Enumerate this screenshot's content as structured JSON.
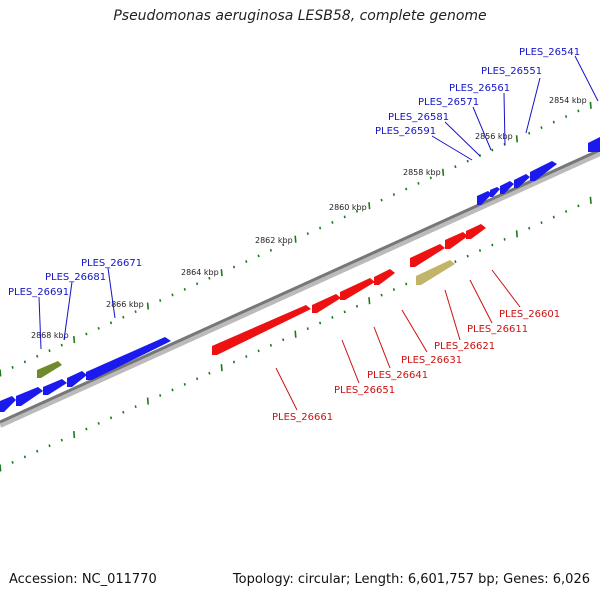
{
  "title": "Pseudomonas aeruginosa LESB58, complete genome",
  "footer": {
    "accession": "Accession: NC_011770",
    "stats": "Topology: circular; Length: 6,601,757 bp; Genes: 6,026"
  },
  "colors": {
    "forward_gene": "#1a1aee",
    "reverse_gene": "#ee1111",
    "pseudo_forward": "#6f8a2a",
    "pseudo_reverse": "#c2b56a",
    "tick": "#1b7a1b",
    "backbone": "#777777",
    "label_forward": "#1414c8",
    "label_reverse": "#cc1111"
  },
  "kbp_labels": [
    "2854 kbp",
    "2856 kbp",
    "2858 kbp",
    "2860 kbp",
    "2862 kbp",
    "2864 kbp",
    "2866 kbp",
    "2868 kbp"
  ],
  "forward_labels": [
    "PLES_26541",
    "PLES_26551",
    "PLES_26561",
    "PLES_26571",
    "PLES_26581",
    "PLES_26591",
    "PLES_26671",
    "PLES_26681",
    "PLES_26691"
  ],
  "reverse_labels": [
    "PLES_26601",
    "PLES_26611",
    "PLES_26621",
    "PLES_26631",
    "PLES_26641",
    "PLES_26651",
    "PLES_26661"
  ]
}
